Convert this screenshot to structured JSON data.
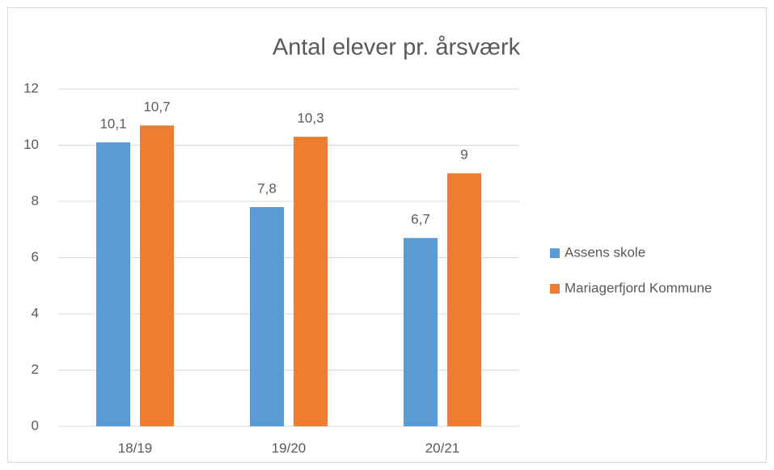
{
  "chart_data": {
    "type": "bar",
    "title": "Antal elever pr. årsværk",
    "categories": [
      "18/19",
      "19/20",
      "20/21"
    ],
    "series": [
      {
        "name": "Assens skole",
        "color": "#5b9bd5",
        "values": [
          10.1,
          7.8,
          6.7
        ],
        "value_labels": [
          "10,1",
          "7,8",
          "6,7"
        ]
      },
      {
        "name": "Mariagerfjord Kommune",
        "color": "#ed7d31",
        "values": [
          10.7,
          10.3,
          9
        ],
        "value_labels": [
          "10,7",
          "10,3",
          "9"
        ]
      }
    ],
    "ylim": [
      0,
      12
    ],
    "yticks": [
      0,
      2,
      4,
      6,
      8,
      10,
      12
    ],
    "grid": true,
    "legend": "right"
  }
}
